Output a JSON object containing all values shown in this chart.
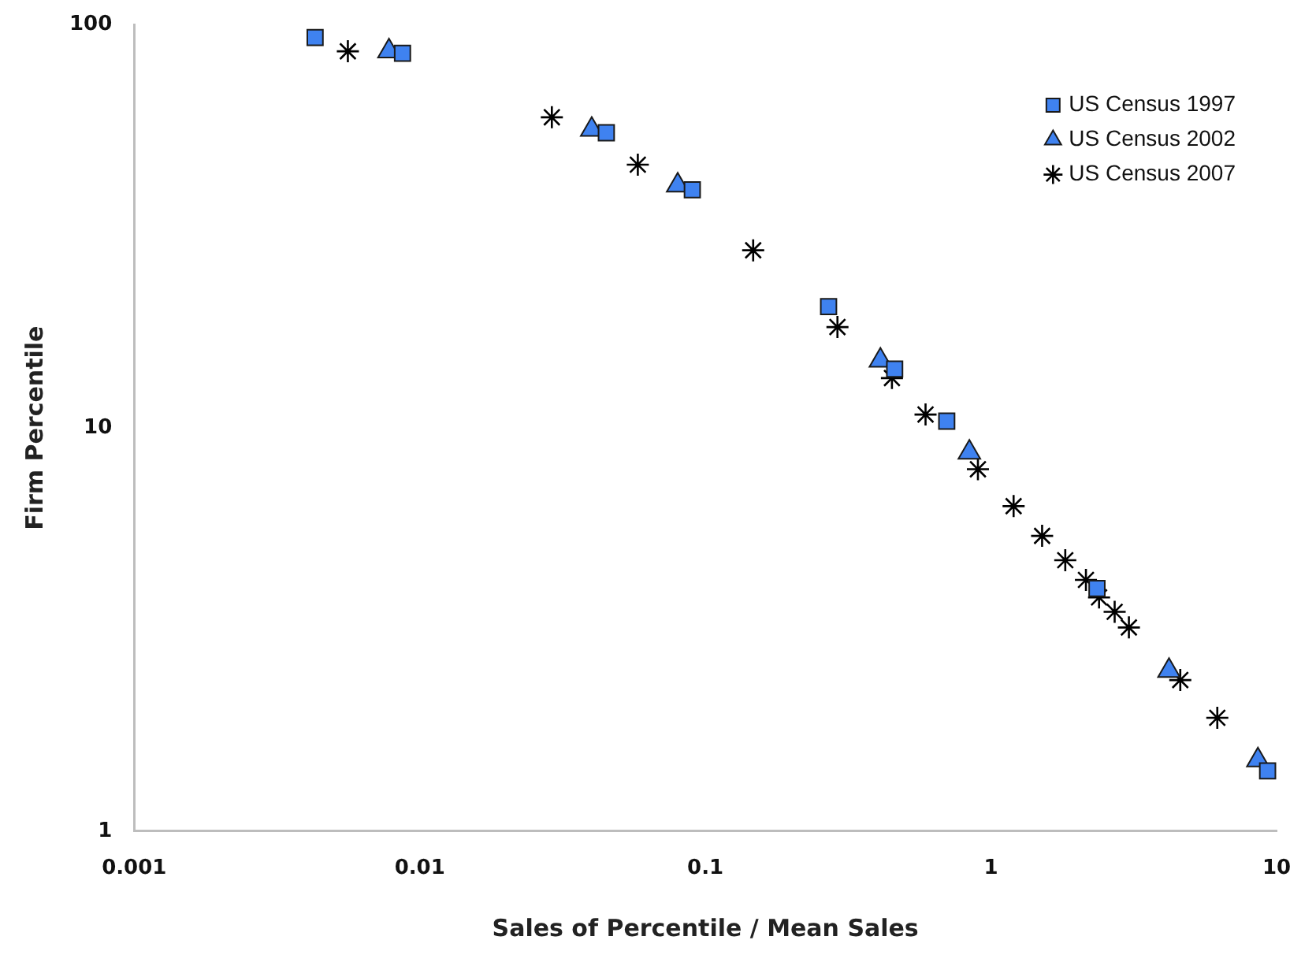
{
  "chart_data": {
    "type": "scatter",
    "xlabel": "Sales of Percentile / Mean Sales",
    "ylabel": "Firm Percentile",
    "log": "xy",
    "grid": false,
    "legend": "top right",
    "xlim": [
      0.001,
      10
    ],
    "xticks": [
      0.001,
      0.01,
      0.1,
      1,
      10
    ],
    "ylim": [
      1,
      100
    ],
    "yticks": [
      1,
      10,
      100
    ],
    "series": [
      {
        "name": "US Census 1997",
        "color": "#3f82f0",
        "marker": "square",
        "x": [
          0.0043,
          0.0087,
          0.045,
          0.09,
          0.27,
          0.46,
          0.7,
          2.35,
          9.3
        ],
        "values": [
          93,
          85,
          54,
          39,
          20,
          14,
          10.4,
          4.0,
          1.41
        ]
      },
      {
        "name": "US Census 2002",
        "color": "#3f82f0",
        "marker": "triangle",
        "x": [
          0.0078,
          0.04,
          0.08,
          0.41,
          0.84,
          4.2,
          8.6
        ],
        "values": [
          86,
          55,
          40,
          14.7,
          8.7,
          2.5,
          1.5
        ]
      },
      {
        "name": "US Census 2007",
        "color": "#000000",
        "marker": "cross",
        "x": [
          0.0056,
          0.029,
          0.058,
          0.147,
          0.29,
          0.45,
          0.59,
          0.9,
          1.2,
          1.51,
          1.82,
          2.15,
          2.39,
          2.71,
          3.04,
          4.6,
          6.2
        ],
        "values": [
          86,
          59,
          45,
          27.6,
          17.8,
          13.3,
          10.8,
          7.9,
          6.4,
          5.4,
          4.7,
          4.2,
          3.8,
          3.5,
          3.2,
          2.37,
          1.91
        ]
      }
    ]
  }
}
